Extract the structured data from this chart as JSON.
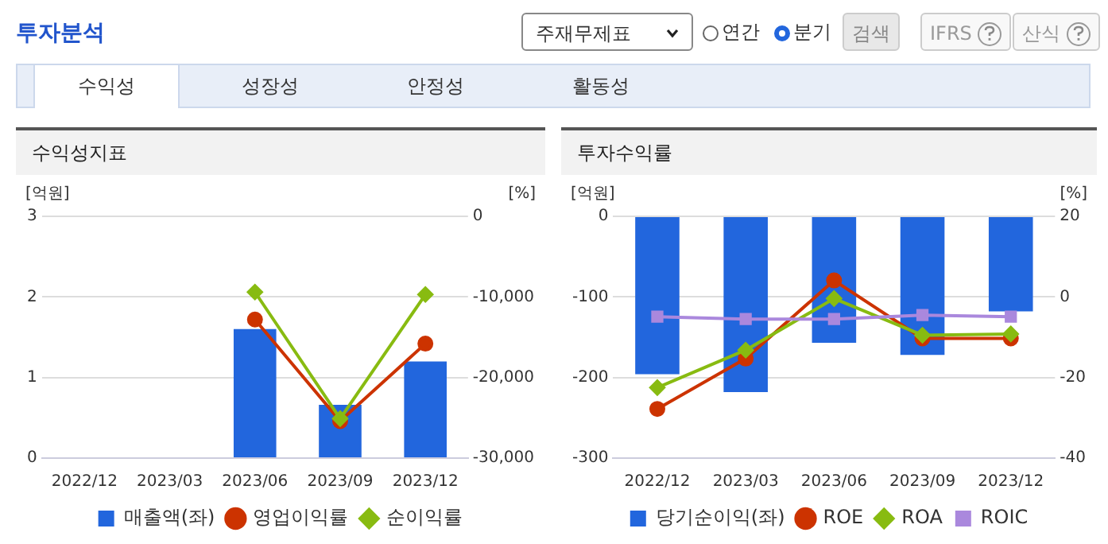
{
  "chart_data": [
    {
      "type": "bar",
      "title": "수익성지표",
      "ylabel": "[억원]",
      "y2label": "[%]",
      "annotations": [
        "투자분석",
        "주재무제표",
        "연간",
        "분기",
        "검색",
        "IFRS",
        "산식",
        "수익성",
        "성장성",
        "안정성",
        "활동성"
      ],
      "categories": [
        "2022/12",
        "2023/03",
        "2023/06",
        "2023/09",
        "2023/12"
      ],
      "series": [
        {
          "name": "매출액(좌)",
          "color": "#2266dd",
          "values": [
            null,
            null,
            1.6,
            0.66,
            1.2
          ]
        },
        {
          "name": "영업이익률",
          "type": "line",
          "axis": "y2",
          "marker": "circle",
          "color": "#cc3300",
          "values": [
            null,
            null,
            -12800,
            -25400,
            -15800
          ]
        },
        {
          "name": "순이익률",
          "type": "line",
          "axis": "y2",
          "marker": "diamond",
          "color": "#88bb11",
          "values": [
            null,
            null,
            -9400,
            -25100,
            -9700
          ]
        }
      ],
      "ylim": [
        0,
        3
      ],
      "yticks": [
        0,
        1,
        2,
        3
      ],
      "y2lim": [
        -30000,
        0
      ],
      "y2ticks": [
        {
          "value": -30000,
          "label": "-30,000"
        },
        {
          "value": -20000,
          "label": "-20,000"
        },
        {
          "value": -10000,
          "label": "-10,000"
        },
        0
      ],
      "grid": "y",
      "legend": "bottom"
    },
    {
      "type": "bar",
      "title": "투자수익률",
      "ylabel": "[억원]",
      "y2label": "[%]",
      "categories": [
        "2022/12",
        "2023/03",
        "2023/06",
        "2023/09",
        "2023/12"
      ],
      "series": [
        {
          "name": "당기순이익(좌)",
          "color": "#2266dd",
          "values": [
            -196,
            -218,
            -157,
            -172,
            -118
          ]
        },
        {
          "name": "ROE",
          "type": "line",
          "axis": "y2",
          "marker": "circle",
          "color": "#cc3300",
          "values": [
            -27.8,
            -15.3,
            4.1,
            -10.3,
            -10.3
          ]
        },
        {
          "name": "ROA",
          "type": "line",
          "axis": "y2",
          "marker": "diamond",
          "color": "#88bb11",
          "values": [
            -22.5,
            -13.2,
            -0.4,
            -9.5,
            -9.2
          ]
        },
        {
          "name": "ROIC",
          "type": "line",
          "axis": "y2",
          "marker": "square",
          "color": "#aa88dd",
          "values": [
            -4.9,
            -5.5,
            -5.5,
            -4.5,
            -4.9
          ]
        }
      ],
      "ylim": [
        -300,
        0
      ],
      "yticks": [
        -300,
        -200,
        -100,
        0
      ],
      "y2lim": [
        -40,
        20
      ],
      "y2ticks": [
        -40,
        -20,
        0,
        20
      ],
      "grid": "y",
      "legend": "bottom"
    }
  ]
}
